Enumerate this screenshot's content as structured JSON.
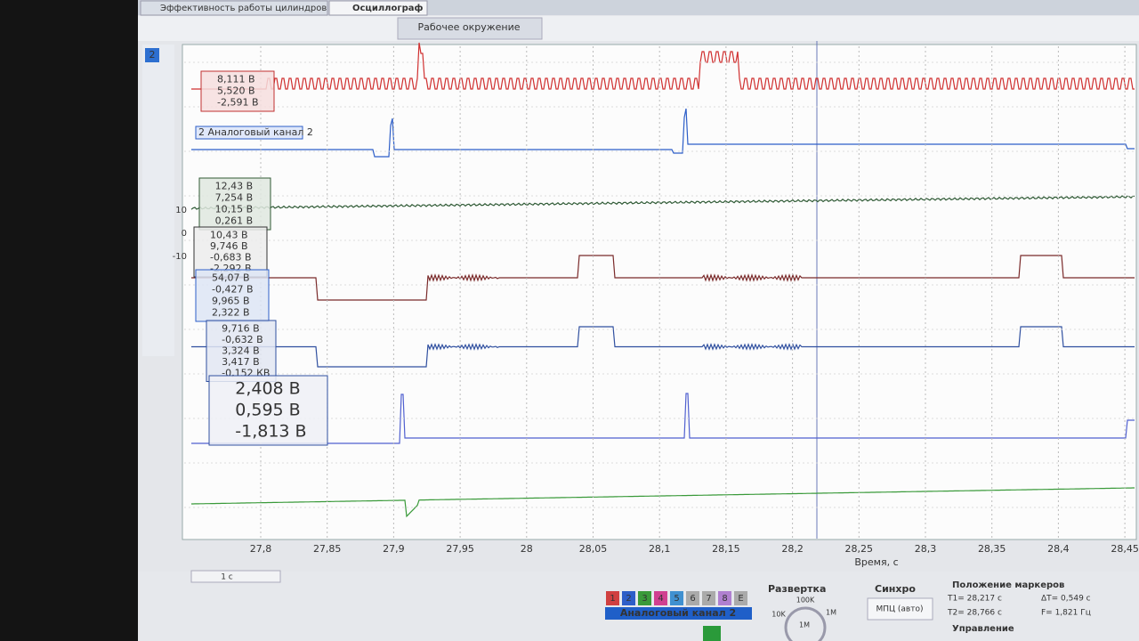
{
  "tabs": [
    "Эффективность работы цилиндров",
    "Осциллограф"
  ],
  "toolbar": {
    "workspace": "Рабочее окружение"
  },
  "channel_index": "2",
  "readouts": [
    {
      "lines": [
        "8,111 В",
        "5,520 В",
        "-2,591 В"
      ]
    },
    {
      "lines": [
        "12,43 В",
        "7,254 В",
        "10,15 В",
        "0,261 В"
      ]
    },
    {
      "lines": [
        "10,43 В",
        "9,746 В",
        "-0,683 В",
        "-2,292 В"
      ]
    },
    {
      "lines": [
        "54,07 В",
        "-0,427 В",
        "9,965 В",
        "2,322 В"
      ]
    },
    {
      "lines": [
        "9,716 В",
        "-0,632 В",
        "3,324 В",
        "3,417 В",
        "-0,152 КВ"
      ]
    },
    {
      "lines": [
        "2,408 В",
        "0,595 В",
        "-1,813 В"
      ]
    }
  ],
  "channel_label": "2 Аналоговый канал 2",
  "y_labels": [
    "10",
    "0",
    "-10"
  ],
  "x_ticks": [
    "27,8",
    "27,85",
    "27,9",
    "27,95",
    "28",
    "28,05",
    "28,1",
    "28,15",
    "28,2",
    "28,25",
    "28,3",
    "28,35",
    "28,4",
    "28,45"
  ],
  "x_axis_label": "Время, с",
  "bottom": {
    "timebase": "1 с",
    "channel_buttons": [
      "1",
      "2",
      "3",
      "4",
      "5",
      "6",
      "7",
      "8",
      "Е"
    ],
    "channel_name": "Аналоговый канал 2",
    "sweep": {
      "title": "Развертка",
      "labels": [
        "100K",
        "10K",
        "1M",
        "1М"
      ]
    },
    "sync": {
      "title": "Синхро",
      "mode": "МПЦ (авто)"
    },
    "markers": {
      "title": "Положение маркеров",
      "t1": "T1= 28,217 с",
      "t2": "T2= 28,766 с",
      "dt": "ΔT= 0,549 с",
      "f": "F= 1,821 Гц"
    },
    "control": "Управление"
  }
}
